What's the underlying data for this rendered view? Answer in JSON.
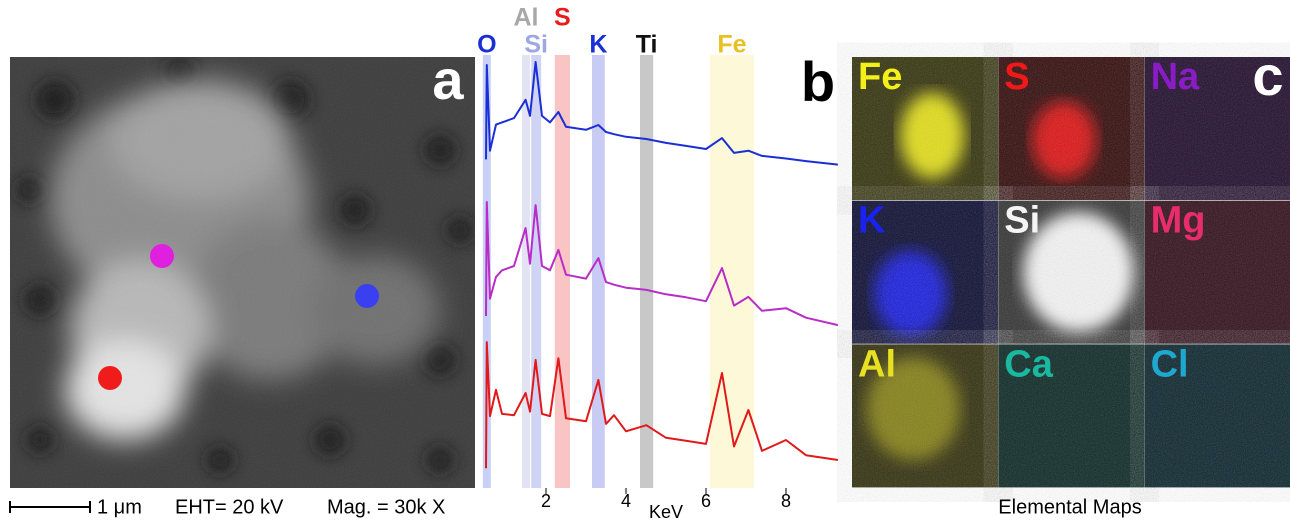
{
  "panel_a": {
    "label": "a",
    "scale_bar": "1 μm",
    "eht": "EHT= 20 kV",
    "mag": "Mag. = 30k X"
  },
  "chart_data": {
    "type": "line",
    "panel_label": "b",
    "x_label": "KeV",
    "xlim": [
      0.5,
      9.3
    ],
    "ylim": [
      0,
      100
    ],
    "xticks": [
      2,
      4,
      6,
      8
    ],
    "bands": [
      {
        "label": "O",
        "from": 0.42,
        "to": 0.62,
        "color": "#c9d0f5",
        "label_color": "#1a2fd6"
      },
      {
        "label": "Al",
        "from": 1.4,
        "to": 1.6,
        "color": "#e3e3f3",
        "label_color": "#a8a8a8"
      },
      {
        "label": "Si",
        "from": 1.63,
        "to": 1.88,
        "color": "#cfd4f4",
        "label_color": "#9ea6e4"
      },
      {
        "label": "S",
        "from": 2.22,
        "to": 2.6,
        "color": "#f8c4c4",
        "label_color": "#e81c1c"
      },
      {
        "label": "K",
        "from": 3.15,
        "to": 3.47,
        "color": "#c8ccf4",
        "label_color": "#1a2fd6"
      },
      {
        "label": "Ti",
        "from": 4.35,
        "to": 4.68,
        "color": "#c8c8c8",
        "label_color": "#111111"
      },
      {
        "label": "Fe",
        "from": 6.1,
        "to": 7.2,
        "color": "#fdf8d8",
        "label_color": "#e8c020"
      }
    ],
    "x": [
      0.5,
      0.52,
      0.6,
      0.75,
      0.9,
      1.2,
      1.49,
      1.6,
      1.74,
      1.9,
      2.1,
      2.31,
      2.5,
      3.0,
      3.31,
      3.5,
      3.7,
      4.0,
      4.51,
      5.0,
      5.5,
      6.0,
      6.4,
      6.7,
      7.06,
      7.4,
      8.0,
      8.5,
      9.3
    ],
    "series": [
      {
        "color": "#1a2fd6",
        "values": [
          76,
          97.7,
          78,
          84,
          84.5,
          85.5,
          89.7,
          86,
          98.4,
          86,
          84.5,
          86.9,
          83.5,
          82.8,
          83.9,
          82.3,
          81.8,
          81.2,
          80.7,
          79.8,
          79.1,
          78.4,
          80.9,
          77.5,
          78,
          76.8,
          76.2,
          75.6,
          74.8
        ]
      },
      {
        "color": "#b82cc8",
        "values": [
          40,
          66.2,
          44,
          49,
          50.5,
          51.5,
          60.2,
          52,
          65.5,
          51.5,
          50.5,
          55.2,
          49.5,
          48.6,
          53.3,
          47.8,
          47.2,
          46.5,
          46,
          45,
          44.3,
          43.4,
          51,
          42.4,
          44.4,
          41.2,
          41.8,
          39.6,
          37.9
        ]
      },
      {
        "color": "#e01a1a",
        "values": [
          5,
          34,
          17,
          23,
          17.5,
          17.2,
          22.3,
          18,
          29.9,
          17.5,
          17,
          30.3,
          16.5,
          15.8,
          25.3,
          15.2,
          17.2,
          13.5,
          14.9,
          12,
          11.3,
          10.6,
          26.9,
          10,
          18.4,
          9,
          11.5,
          8,
          6.9
        ]
      }
    ]
  },
  "panel_c": {
    "label": "c",
    "caption": "Elemental Maps",
    "maps": [
      {
        "element": "Fe",
        "color": "#f4f01a"
      },
      {
        "element": "S",
        "color": "#f01818"
      },
      {
        "element": "Na",
        "color": "#8a1cc8"
      },
      {
        "element": "K",
        "color": "#1a22f0"
      },
      {
        "element": "Si",
        "color": "#f4f4f4"
      },
      {
        "element": "Mg",
        "color": "#e82c6c"
      },
      {
        "element": "Al",
        "color": "#e8e020"
      },
      {
        "element": "Ca",
        "color": "#1ab8a0"
      },
      {
        "element": "Cl",
        "color": "#1ea8d0"
      }
    ]
  }
}
